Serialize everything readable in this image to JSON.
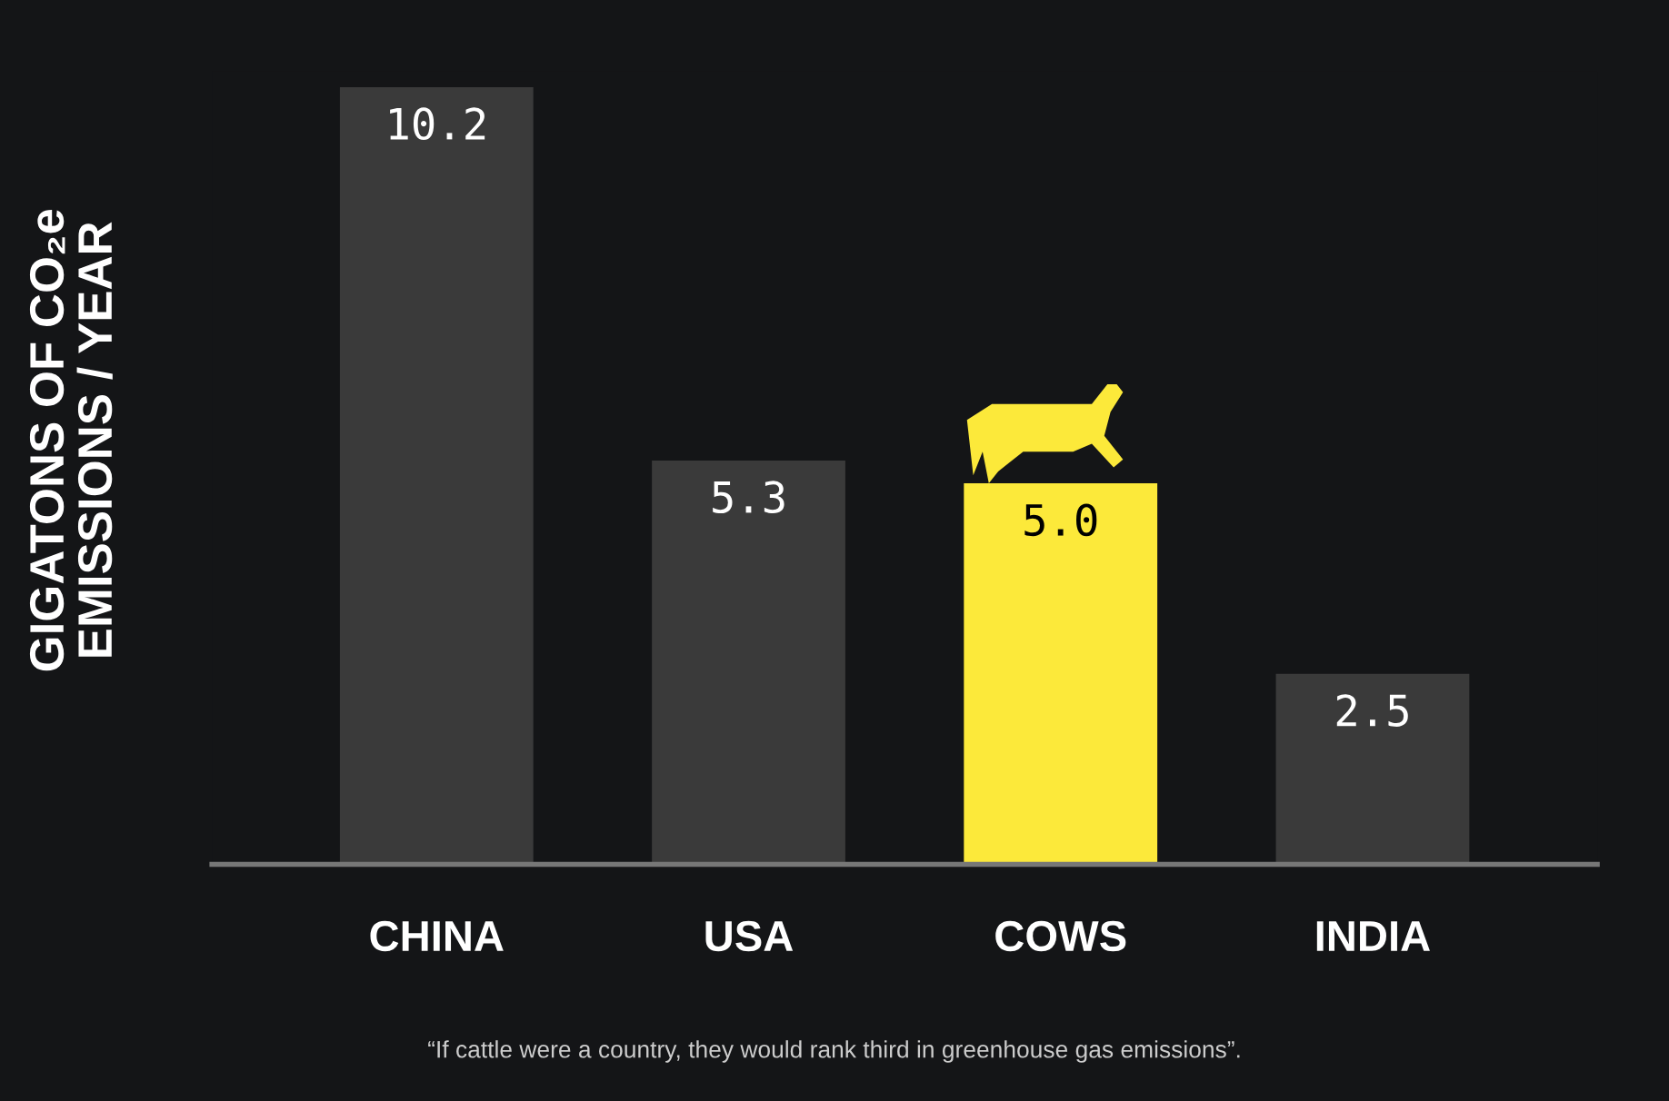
{
  "chart_data": {
    "type": "bar",
    "categories": [
      "CHINA",
      "USA",
      "COWS",
      "INDIA"
    ],
    "values": [
      10.2,
      5.3,
      5.0,
      2.5
    ],
    "colors": [
      "#3a3a3a",
      "#3a3a3a",
      "#fce93a",
      "#3a3a3a"
    ],
    "value_labels": [
      "10.2",
      "5.3",
      "5.0",
      "2.5"
    ],
    "grid": false,
    "legend": false,
    "ylabel": "GIGATONS OF CO₂e\nEMISSIONS / YEAR",
    "annotations": [
      "“If cattle were a country, they would rank third in greenhouse gas emissions”."
    ]
  }
}
